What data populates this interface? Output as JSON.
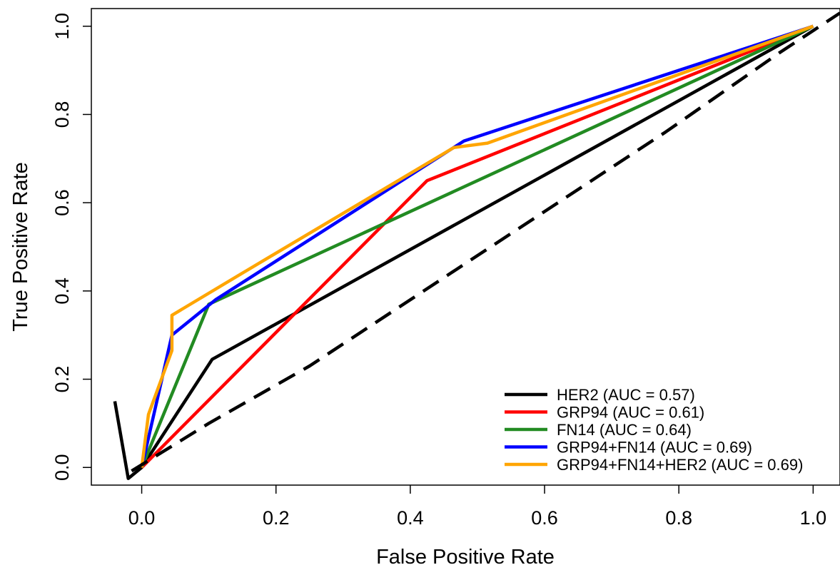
{
  "chart_data": {
    "type": "line",
    "title": "",
    "xlabel": "False Positive Rate",
    "ylabel": "True Positive Rate",
    "xlim": [
      -0.075,
      1.04
    ],
    "ylim": [
      -0.04,
      1.04
    ],
    "grid": false,
    "x_ticks": [
      0.0,
      0.2,
      0.4,
      0.6,
      0.8,
      1.0
    ],
    "x_tick_labels": [
      "0.0",
      "0.2",
      "0.4",
      "0.6",
      "0.8",
      "1.0"
    ],
    "y_ticks": [
      0.0,
      0.2,
      0.4,
      0.6,
      0.8,
      1.0
    ],
    "y_tick_labels": [
      "0.0",
      "0.2",
      "0.4",
      "0.6",
      "0.8",
      "1.0"
    ],
    "legend_position": "bottom-right",
    "series": [
      {
        "name": "HER2 (AUC = 0.57)",
        "color": "#000000",
        "x": [
          -0.04,
          -0.02,
          0.0,
          0.105,
          1.0
        ],
        "y": [
          0.15,
          -0.025,
          0.0,
          0.245,
          1.0
        ]
      },
      {
        "name": "GRP94 (AUC = 0.61)",
        "color": "#ff0000",
        "x": [
          0.0,
          0.425,
          1.0
        ],
        "y": [
          0.0,
          0.65,
          1.0
        ]
      },
      {
        "name": "FN14 (AUC = 0.64)",
        "color": "#228b22",
        "x": [
          0.0,
          0.1,
          1.0
        ],
        "y": [
          0.0,
          0.37,
          1.0
        ]
      },
      {
        "name": "GRP94+FN14 (AUC = 0.69)",
        "color": "#0000ff",
        "x": [
          0.0,
          0.045,
          0.11,
          0.48,
          1.0
        ],
        "y": [
          0.0,
          0.3,
          0.38,
          0.74,
          1.0
        ]
      },
      {
        "name": "GRP94+FN14+HER2 (AUC = 0.69)",
        "color": "#ffa500",
        "x": [
          0.0,
          0.01,
          0.045,
          0.045,
          0.155,
          0.465,
          0.515,
          1.0
        ],
        "y": [
          0.0,
          0.12,
          0.265,
          0.345,
          0.445,
          0.725,
          0.735,
          1.0
        ]
      },
      {
        "color": "#000000",
        "dashed": true,
        "x": [
          -0.015,
          0.1,
          0.25,
          0.48,
          0.6,
          0.78,
          0.95,
          1.04
        ],
        "y": [
          -0.008,
          0.1,
          0.23,
          0.46,
          0.58,
          0.76,
          0.94,
          1.03
        ]
      }
    ]
  }
}
